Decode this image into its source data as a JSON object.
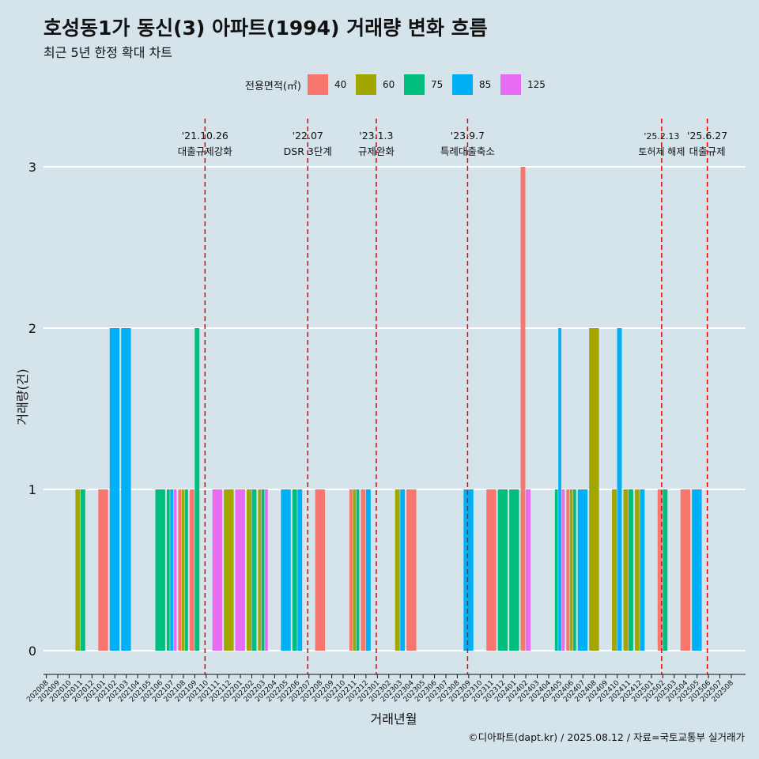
{
  "title": "호성동1가 동신(3) 아파트(1994) 거래량 변화 흐름",
  "subtitle": "최근 5년 한정 확대 차트",
  "caption": "©디아파트(dapt.kr) / 2025.08.12 / 자료=국토교통부 실거래가",
  "legend": {
    "title": "전용면적(㎡)",
    "items": [
      {
        "label": "40",
        "color": "#f8766d"
      },
      {
        "label": "60",
        "color": "#a3a500"
      },
      {
        "label": "75",
        "color": "#00bf7d"
      },
      {
        "label": "85",
        "color": "#00b0f6"
      },
      {
        "label": "125",
        "color": "#e76bf3"
      }
    ]
  },
  "chart_data": {
    "type": "bar",
    "xlabel": "거래년월",
    "ylabel": "거래량(건)",
    "ylim": [
      0,
      3
    ],
    "yticks": [
      0,
      1,
      2,
      3
    ],
    "grid": true,
    "categories": [
      "202008",
      "202009",
      "202010",
      "202011",
      "202012",
      "202101",
      "202102",
      "202103",
      "202104",
      "202105",
      "202106",
      "202107",
      "202108",
      "202109",
      "202110",
      "202111",
      "202112",
      "202201",
      "202202",
      "202203",
      "202204",
      "202205",
      "202206",
      "202207",
      "202208",
      "202209",
      "202210",
      "202211",
      "202212",
      "202301",
      "202302",
      "202303",
      "202304",
      "202305",
      "202306",
      "202307",
      "202308",
      "202309",
      "202310",
      "202311",
      "202312",
      "202401",
      "202402",
      "202403",
      "202404",
      "202405",
      "202406",
      "202407",
      "202408",
      "202409",
      "202410",
      "202411",
      "202412",
      "202501",
      "202502",
      "202503",
      "202504",
      "202505",
      "202506",
      "202507",
      "202508"
    ],
    "bars": [
      {
        "month": "202011",
        "values": {
          "60": 1,
          "75": 1
        }
      },
      {
        "month": "202101",
        "values": {
          "40": 1
        }
      },
      {
        "month": "202102",
        "values": {
          "85": 2
        }
      },
      {
        "month": "202103",
        "values": {
          "85": 2
        }
      },
      {
        "month": "202106",
        "values": {
          "75": 1
        }
      },
      {
        "month": "202107",
        "values": {
          "75": 1,
          "85": 1,
          "125": 1
        }
      },
      {
        "month": "202108",
        "values": {
          "40": 1,
          "60": 1,
          "75": 1
        }
      },
      {
        "month": "202109",
        "values": {
          "40": 1,
          "75": 2
        }
      },
      {
        "month": "202111",
        "values": {
          "125": 1
        }
      },
      {
        "month": "202112",
        "values": {
          "60": 1
        }
      },
      {
        "month": "202201",
        "values": {
          "125": 1
        }
      },
      {
        "month": "202202",
        "values": {
          "60": 1,
          "75": 1
        }
      },
      {
        "month": "202203",
        "values": {
          "60": 1,
          "75": 1,
          "125": 1
        }
      },
      {
        "month": "202205",
        "values": {
          "85": 1
        }
      },
      {
        "month": "202206",
        "values": {
          "85": 1,
          "75": 1
        }
      },
      {
        "month": "202208",
        "values": {
          "40": 1
        }
      },
      {
        "month": "202211",
        "values": {
          "40": 1,
          "60": 1,
          "75": 1
        }
      },
      {
        "month": "202212",
        "values": {
          "40": 1,
          "85": 1
        }
      },
      {
        "month": "202303",
        "values": {
          "60": 1,
          "85": 1
        }
      },
      {
        "month": "202304",
        "values": {
          "40": 1
        }
      },
      {
        "month": "202309",
        "values": {
          "85": 1
        }
      },
      {
        "month": "202311",
        "values": {
          "40": 1
        }
      },
      {
        "month": "202312",
        "values": {
          "75": 1
        }
      },
      {
        "month": "202401",
        "values": {
          "75": 1
        }
      },
      {
        "month": "202402",
        "values": {
          "40": 3,
          "125": 1
        }
      },
      {
        "month": "202405",
        "values": {
          "75": 1,
          "85": 2,
          "125": 1
        }
      },
      {
        "month": "202406",
        "values": {
          "40": 1,
          "60": 1,
          "75": 1
        }
      },
      {
        "month": "202407",
        "values": {
          "85": 1
        }
      },
      {
        "month": "202408",
        "values": {
          "60": 2
        }
      },
      {
        "month": "202410",
        "values": {
          "60": 1,
          "85": 2
        }
      },
      {
        "month": "202411",
        "values": {
          "60": 1,
          "75": 1
        }
      },
      {
        "month": "202412",
        "values": {
          "60": 1,
          "85": 1
        }
      },
      {
        "month": "202502",
        "values": {
          "40": 1,
          "75": 1
        }
      },
      {
        "month": "202504",
        "values": {
          "40": 1
        }
      },
      {
        "month": "202505",
        "values": {
          "85": 1
        }
      }
    ],
    "events": [
      {
        "date": "'21.10.26",
        "label": "대출규제강화",
        "month": "202110"
      },
      {
        "date": "'22.07",
        "label": "DSR 3단계",
        "month": "202207"
      },
      {
        "date": "'23.1.3",
        "label": "규제완화",
        "month": "202301"
      },
      {
        "date": "'23.9.7",
        "label": "특례대출축소",
        "month": "202309"
      },
      {
        "date": "'25.2.13",
        "label": "토허제 해제",
        "month": "202502"
      },
      {
        "date": "'25.6.27",
        "label": "대출규제",
        "month": "202506"
      }
    ]
  }
}
